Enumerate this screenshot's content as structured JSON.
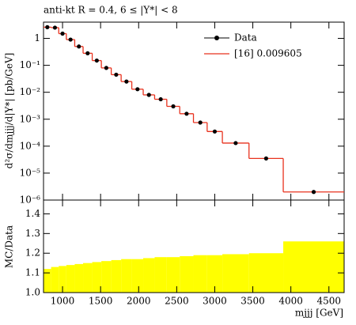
{
  "chart_data": {
    "type": "histogram",
    "title": "anti-kt R = 0.4, 6 ≤ |Y*| < 8",
    "y_label": "d²σ/dmjjj/d|Y*| [pb/GeV]",
    "x_label": "mjjj [GeV]",
    "ratio_label": "MC/Data",
    "bins": [
      750,
      850,
      950,
      1050,
      1160,
      1270,
      1390,
      1510,
      1640,
      1770,
      1910,
      2060,
      2210,
      2370,
      2540,
      2720,
      2900,
      3100,
      3450,
      3900,
      4700
    ],
    "series": [
      {
        "name": "Data",
        "color": "#000000",
        "values": [
          2.6,
          2.5,
          1.5,
          0.9,
          0.5,
          0.28,
          0.15,
          0.08,
          0.045,
          0.025,
          0.013,
          0.008,
          0.0055,
          0.003,
          0.0016,
          0.00075,
          0.00035,
          0.00013,
          3.5e-05,
          2e-06
        ]
      },
      {
        "name": "[16] 0.009605",
        "color": "#e8321e",
        "values": [
          2.6,
          2.5,
          1.5,
          0.9,
          0.5,
          0.28,
          0.15,
          0.08,
          0.045,
          0.025,
          0.013,
          0.008,
          0.0055,
          0.003,
          0.0016,
          0.00075,
          0.00035,
          0.00013,
          3.5e-05,
          2e-06
        ]
      }
    ],
    "ratio_band": {
      "color": "#ffff00",
      "values": [
        1.12,
        1.13,
        1.135,
        1.14,
        1.145,
        1.15,
        1.155,
        1.16,
        1.165,
        1.17,
        1.17,
        1.175,
        1.18,
        1.18,
        1.185,
        1.19,
        1.19,
        1.195,
        1.2,
        1.26
      ]
    },
    "xlim": [
      750,
      4700
    ],
    "xticks": [
      1000,
      1500,
      2000,
      2500,
      3000,
      3500,
      4000,
      4500
    ],
    "ylim": [
      1e-06,
      4
    ],
    "log_y": true,
    "yticks": [
      {
        "value": 1,
        "label": "1"
      },
      {
        "value": 0.1,
        "label": "10⁻¹"
      },
      {
        "value": 0.01,
        "label": "10⁻²"
      },
      {
        "value": 0.001,
        "label": "10⁻³"
      },
      {
        "value": 0.0001,
        "label": "10⁻⁴"
      },
      {
        "value": 1e-05,
        "label": "10⁻⁵"
      },
      {
        "value": 1e-06,
        "label": "10⁻⁶"
      }
    ],
    "ratio_ylim": [
      1.0,
      1.47
    ],
    "ratio_yticks": [
      {
        "value": 1.0,
        "label": "1.0"
      },
      1.1,
      1.2,
      1.3,
      1.4
    ]
  }
}
